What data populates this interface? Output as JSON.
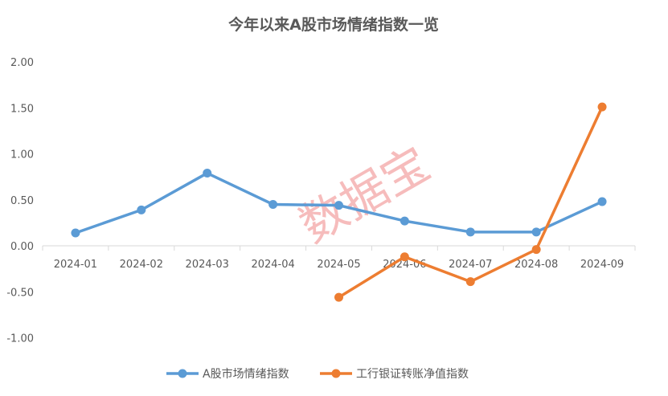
{
  "chart_data": {
    "type": "line",
    "title": "今年以来A股市场情绪指数一览",
    "xlabel": "",
    "ylabel": "",
    "categories": [
      "2024-01",
      "2024-02",
      "2024-03",
      "2024-04",
      "2024-05",
      "2024-06",
      "2024-07",
      "2024-08",
      "2024-09"
    ],
    "ylim": [
      -1.0,
      2.0
    ],
    "yticks": [
      -1.0,
      -0.5,
      0.0,
      0.5,
      1.0,
      1.5,
      2.0
    ],
    "ytick_labels": [
      "-1.00",
      "-0.50",
      "0.00",
      "0.50",
      "1.00",
      "1.50",
      "2.00"
    ],
    "grid": false,
    "legend_position": "bottom",
    "series": [
      {
        "name": "A股市场情绪指数",
        "color": "#5B9BD5",
        "values": [
          0.14,
          0.39,
          0.79,
          0.45,
          0.44,
          0.27,
          0.15,
          0.15,
          0.48
        ]
      },
      {
        "name": "工行银证转账净值指数",
        "color": "#ED7D31",
        "values": [
          null,
          null,
          null,
          null,
          -0.56,
          -0.12,
          -0.39,
          -0.04,
          1.51
        ]
      }
    ],
    "watermark": "数据宝"
  }
}
